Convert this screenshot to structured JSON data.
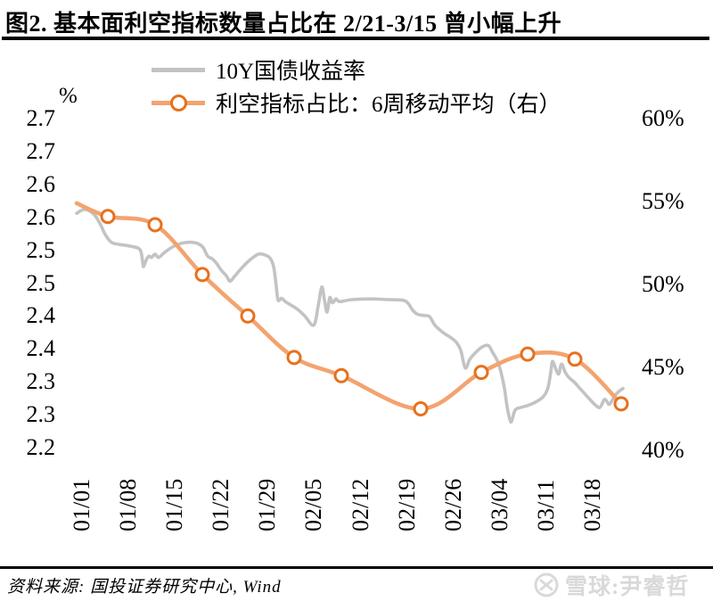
{
  "title": "图2. 基本面利空指标数量占比在 2/21-3/15 曾小幅上升",
  "legend": [
    {
      "label": "10Y国债收益率"
    },
    {
      "label": "利空指标占比：6周移动平均（右）"
    }
  ],
  "source": "资料来源: 国投证券研究中心, Wind",
  "watermark": {
    "icon": "xueqiu-snowball-logo",
    "text": "雪球:尹睿哲"
  },
  "chart_data": {
    "type": "line",
    "title": "图2. 基本面利空指标数量占比在 2/21-3/15 曾小幅上升",
    "grid": "off",
    "legend_position": "top",
    "x_axis": {
      "tick_labels": [
        "01/01",
        "01/08",
        "01/15",
        "01/22",
        "01/29",
        "02/05",
        "02/12",
        "02/19",
        "02/26",
        "03/04",
        "03/11",
        "03/18"
      ],
      "label_rotation_deg": 90
    },
    "left_axis": {
      "unit": "%",
      "tick_labels": [
        "2.7",
        "2.7",
        "2.6",
        "2.6",
        "2.5",
        "2.5",
        "2.4",
        "2.4",
        "2.3",
        "2.3",
        "2.2"
      ],
      "implied_tick_values": [
        2.7,
        2.65,
        2.6,
        2.55,
        2.5,
        2.45,
        2.4,
        2.35,
        2.3,
        2.25,
        2.2
      ],
      "range": [
        2.2,
        2.7
      ]
    },
    "right_axis": {
      "tick_labels": [
        "60%",
        "55%",
        "50%",
        "45%",
        "40%"
      ],
      "tick_values": [
        60,
        55,
        50,
        45,
        40
      ],
      "range": [
        40,
        60
      ]
    },
    "colors": {
      "gray_line": "#c3c3c3",
      "orange_line": "#f3a36f",
      "marker_ring": "#e8701c",
      "watermark": "#d9d9d9"
    },
    "series": [
      {
        "name": "10Y国债收益率",
        "axis": "left",
        "style": "line",
        "color": "#c3c3c3",
        "points": [
          [
            86,
            2.556
          ],
          [
            95,
            2.562
          ],
          [
            105,
            2.555
          ],
          [
            112,
            2.541
          ],
          [
            118,
            2.524
          ],
          [
            125,
            2.512
          ],
          [
            133,
            2.509
          ],
          [
            147,
            2.506
          ],
          [
            157,
            2.501
          ],
          [
            160,
            2.483
          ],
          [
            161,
            2.475
          ],
          [
            164,
            2.485
          ],
          [
            167,
            2.491
          ],
          [
            170,
            2.489
          ],
          [
            174,
            2.494
          ],
          [
            178,
            2.489
          ],
          [
            185,
            2.497
          ],
          [
            195,
            2.506
          ],
          [
            205,
            2.511
          ],
          [
            215,
            2.512
          ],
          [
            222,
            2.51
          ],
          [
            228,
            2.504
          ],
          [
            233,
            2.491
          ],
          [
            238,
            2.487
          ],
          [
            243,
            2.48
          ],
          [
            248,
            2.47
          ],
          [
            254,
            2.461
          ],
          [
            258,
            2.453
          ],
          [
            263,
            2.46
          ],
          [
            268,
            2.468
          ],
          [
            274,
            2.477
          ],
          [
            282,
            2.487
          ],
          [
            290,
            2.494
          ],
          [
            297,
            2.493
          ],
          [
            303,
            2.488
          ],
          [
            307,
            2.475
          ],
          [
            310,
            2.445
          ],
          [
            312,
            2.424
          ],
          [
            316,
            2.427
          ],
          [
            320,
            2.422
          ],
          [
            326,
            2.417
          ],
          [
            334,
            2.41
          ],
          [
            342,
            2.4
          ],
          [
            352,
            2.386
          ],
          [
            357,
            2.415
          ],
          [
            361,
            2.444
          ],
          [
            364,
            2.425
          ],
          [
            367,
            2.406
          ],
          [
            370,
            2.428
          ],
          [
            373,
            2.42
          ],
          [
            377,
            2.426
          ],
          [
            381,
            2.422
          ],
          [
            395,
            2.425
          ],
          [
            415,
            2.426
          ],
          [
            435,
            2.425
          ],
          [
            452,
            2.424
          ],
          [
            458,
            2.419
          ],
          [
            463,
            2.409
          ],
          [
            468,
            2.403
          ],
          [
            475,
            2.401
          ],
          [
            482,
            2.399
          ],
          [
            488,
            2.386
          ],
          [
            497,
            2.375
          ],
          [
            505,
            2.368
          ],
          [
            512,
            2.36
          ],
          [
            517,
            2.348
          ],
          [
            522,
            2.321
          ],
          [
            527,
            2.334
          ],
          [
            534,
            2.345
          ],
          [
            541,
            2.353
          ],
          [
            548,
            2.355
          ],
          [
            553,
            2.344
          ],
          [
            558,
            2.332
          ],
          [
            562,
            2.315
          ],
          [
            566,
            2.29
          ],
          [
            569,
            2.262
          ],
          [
            572,
            2.243
          ],
          [
            574,
            2.24
          ],
          [
            578,
            2.257
          ],
          [
            584,
            2.261
          ],
          [
            592,
            2.264
          ],
          [
            602,
            2.27
          ],
          [
            610,
            2.278
          ],
          [
            615,
            2.292
          ],
          [
            618,
            2.315
          ],
          [
            620,
            2.331
          ],
          [
            624,
            2.318
          ],
          [
            627,
            2.312
          ],
          [
            630,
            2.327
          ],
          [
            634,
            2.315
          ],
          [
            638,
            2.307
          ],
          [
            644,
            2.3
          ],
          [
            652,
            2.288
          ],
          [
            660,
            2.276
          ],
          [
            667,
            2.266
          ],
          [
            673,
            2.261
          ],
          [
            678,
            2.273
          ],
          [
            681,
            2.27
          ],
          [
            684,
            2.266
          ],
          [
            690,
            2.279
          ],
          [
            695,
            2.286
          ],
          [
            699,
            2.29
          ]
        ]
      },
      {
        "name": "利空指标占比：6周移动平均（右）",
        "axis": "right",
        "style": "line+markers",
        "color": "#f3a36f",
        "marker_stroke": "#e8701c",
        "first_point_has_marker": false,
        "points": [
          [
            86,
            54.9
          ],
          [
            121,
            54.1
          ],
          [
            174,
            53.6
          ],
          [
            227,
            50.6
          ],
          [
            278,
            48.1
          ],
          [
            330,
            45.6
          ],
          [
            383,
            44.5
          ],
          [
            472,
            42.5
          ],
          [
            540,
            44.7
          ],
          [
            592,
            45.8
          ],
          [
            645,
            45.5
          ],
          [
            697,
            42.8
          ]
        ]
      }
    ]
  }
}
